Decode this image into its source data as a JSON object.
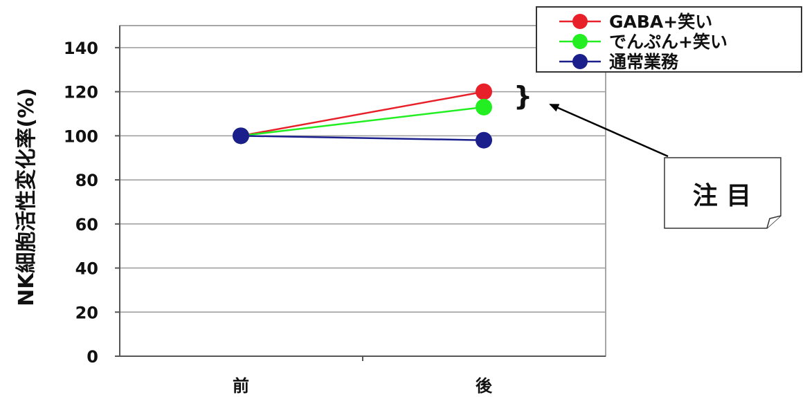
{
  "chart_data": {
    "type": "line",
    "categories": [
      "前",
      "後"
    ],
    "ylabel": "NK細胞活性変化率(%)",
    "xlabel": "",
    "ylim": [
      0,
      150
    ],
    "yticks": [
      0,
      20,
      40,
      60,
      80,
      100,
      120,
      140
    ],
    "grid": true,
    "legend_position": "top-right",
    "series": [
      {
        "name": "GABA+笑い",
        "color": "#e8202a",
        "values": [
          100,
          120
        ]
      },
      {
        "name": "でんぷん+笑い",
        "color": "#22ee22",
        "values": [
          100,
          113
        ]
      },
      {
        "name": "通常業務",
        "color": "#1a1f8c",
        "values": [
          100,
          98
        ]
      }
    ]
  },
  "annotation": {
    "text": "注 目",
    "brace": "}"
  }
}
